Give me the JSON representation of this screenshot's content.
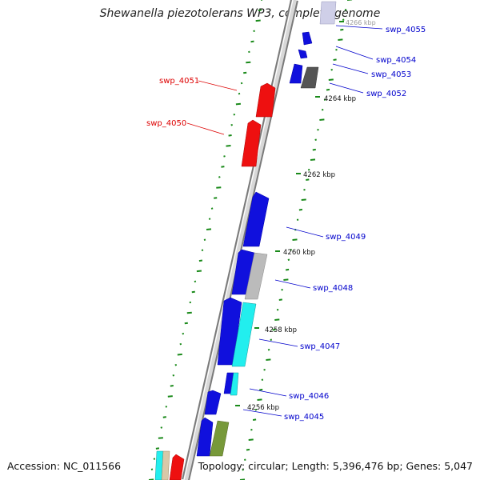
{
  "title": "Shewanella piezotolerans WP3, complete genome",
  "footer": {
    "accession": "Accession: NC_011566",
    "summary": "Topology: circular; Length: 5,396,476 bp; Genes: 5,047"
  },
  "ticks": [
    "4266 kbp",
    "4264 kbp",
    "4262 kbp",
    "4260 kbp",
    "4258 kbp",
    "4256 kbp"
  ],
  "genes": [
    {
      "label": "swp_4055",
      "color": "#0000cc"
    },
    {
      "label": "swp_4054",
      "color": "#0000cc"
    },
    {
      "label": "swp_4053",
      "color": "#0000cc"
    },
    {
      "label": "swp_4052",
      "color": "#0000cc"
    },
    {
      "label": "swp_4051",
      "color": "#dd0000"
    },
    {
      "label": "swp_4050",
      "color": "#dd0000"
    },
    {
      "label": "swp_4049",
      "color": "#0000cc"
    },
    {
      "label": "swp_4048",
      "color": "#0000cc"
    },
    {
      "label": "swp_4047",
      "color": "#0000cc"
    },
    {
      "label": "swp_4046",
      "color": "#0000cc"
    },
    {
      "label": "swp_4045",
      "color": "#0000cc"
    }
  ],
  "colors": {
    "backbone": "#9a9a9a",
    "gene_blue": "#1010dd",
    "gene_red": "#ee1010",
    "gene_gray": "#bbbbbb",
    "gene_cyan": "#22eeee",
    "gene_olive": "#77993a",
    "gc_marks": "#1a8a1a"
  }
}
